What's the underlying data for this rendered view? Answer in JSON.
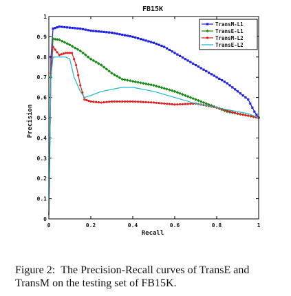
{
  "chart_data": {
    "type": "line",
    "title": "FB15K",
    "xlabel": "Recall",
    "ylabel": "Precision",
    "xlim": [
      0,
      1
    ],
    "ylim": [
      0,
      1
    ],
    "grid": false,
    "legend_position": "top-right",
    "x_ticks": [
      "0",
      "0.2",
      "0.4",
      "0.6",
      "0.8",
      "1"
    ],
    "y_ticks": [
      "0",
      "0.1",
      "0.2",
      "0.3",
      "0.4",
      "0.5",
      "0.6",
      "0.7",
      "0.8",
      "0.9",
      "1"
    ],
    "series": [
      {
        "name": "TransM-L1",
        "color": "#1f1fe0",
        "marker": "square",
        "x": [
          0,
          0.01,
          0.02,
          0.05,
          0.1,
          0.15,
          0.2,
          0.3,
          0.4,
          0.5,
          0.55,
          0.6,
          0.65,
          0.7,
          0.75,
          0.8,
          0.85,
          0.9,
          0.95,
          0.98,
          1.0
        ],
        "y": [
          0.02,
          0.8,
          0.94,
          0.95,
          0.945,
          0.94,
          0.93,
          0.92,
          0.9,
          0.87,
          0.85,
          0.82,
          0.79,
          0.76,
          0.73,
          0.7,
          0.67,
          0.63,
          0.59,
          0.53,
          0.5
        ]
      },
      {
        "name": "TransE-L1",
        "color": "#138a13",
        "marker": "diamond",
        "x": [
          0,
          0.01,
          0.02,
          0.05,
          0.1,
          0.15,
          0.2,
          0.25,
          0.3,
          0.35,
          0.4,
          0.5,
          0.6,
          0.7,
          0.75,
          0.8,
          0.85,
          0.9,
          0.95,
          1.0
        ],
        "y": [
          0.02,
          0.7,
          0.89,
          0.885,
          0.86,
          0.83,
          0.79,
          0.76,
          0.72,
          0.69,
          0.68,
          0.66,
          0.63,
          0.59,
          0.57,
          0.55,
          0.53,
          0.52,
          0.51,
          0.5
        ]
      },
      {
        "name": "TransM-L2",
        "color": "#e01f1f",
        "marker": "circle",
        "x": [
          0,
          0.01,
          0.02,
          0.05,
          0.08,
          0.11,
          0.13,
          0.15,
          0.17,
          0.2,
          0.25,
          0.3,
          0.4,
          0.5,
          0.6,
          0.7,
          0.8,
          0.9,
          0.95,
          1.0
        ],
        "y": [
          0.02,
          0.72,
          0.85,
          0.81,
          0.82,
          0.82,
          0.76,
          0.66,
          0.59,
          0.58,
          0.575,
          0.58,
          0.58,
          0.575,
          0.565,
          0.57,
          0.55,
          0.52,
          0.51,
          0.5
        ]
      },
      {
        "name": "TransE-L2",
        "color": "#18b8c8",
        "marker": "line",
        "x": [
          0,
          0.01,
          0.02,
          0.05,
          0.08,
          0.1,
          0.12,
          0.15,
          0.17,
          0.2,
          0.25,
          0.3,
          0.35,
          0.4,
          0.5,
          0.6,
          0.7,
          0.8,
          0.9,
          0.95,
          1.0
        ],
        "y": [
          0.02,
          0.7,
          0.8,
          0.8,
          0.8,
          0.79,
          0.7,
          0.63,
          0.6,
          0.61,
          0.63,
          0.64,
          0.65,
          0.65,
          0.63,
          0.6,
          0.57,
          0.55,
          0.53,
          0.52,
          0.5
        ]
      }
    ]
  },
  "caption": {
    "label": "Figure 2:",
    "text": "The Precision-Recall curves of TransE and TransM on the testing set of FB15K."
  }
}
